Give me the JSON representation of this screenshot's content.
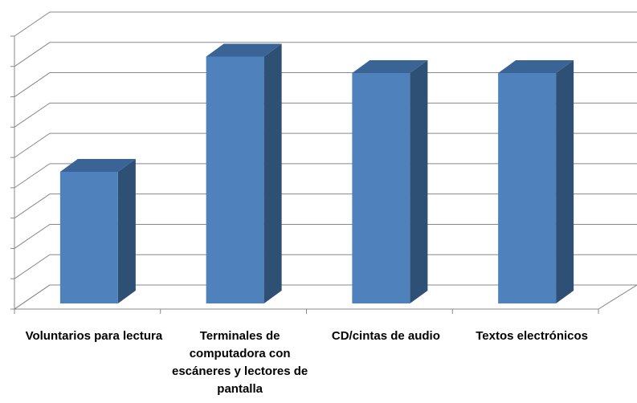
{
  "chart_data": {
    "type": "bar3d",
    "categories": [
      "Voluntarios para lectura",
      "Terminales de computadora con escáneres y lectores de pantalla",
      "CD/cintas de audio",
      "Textos electrónicos"
    ],
    "values": [
      4,
      7.5,
      7,
      7
    ],
    "color": "#4f81bd",
    "ylim": [
      0,
      9
    ],
    "yticks": [
      0,
      1,
      2,
      3,
      4,
      5,
      6,
      7,
      8,
      9
    ],
    "grid": true
  }
}
